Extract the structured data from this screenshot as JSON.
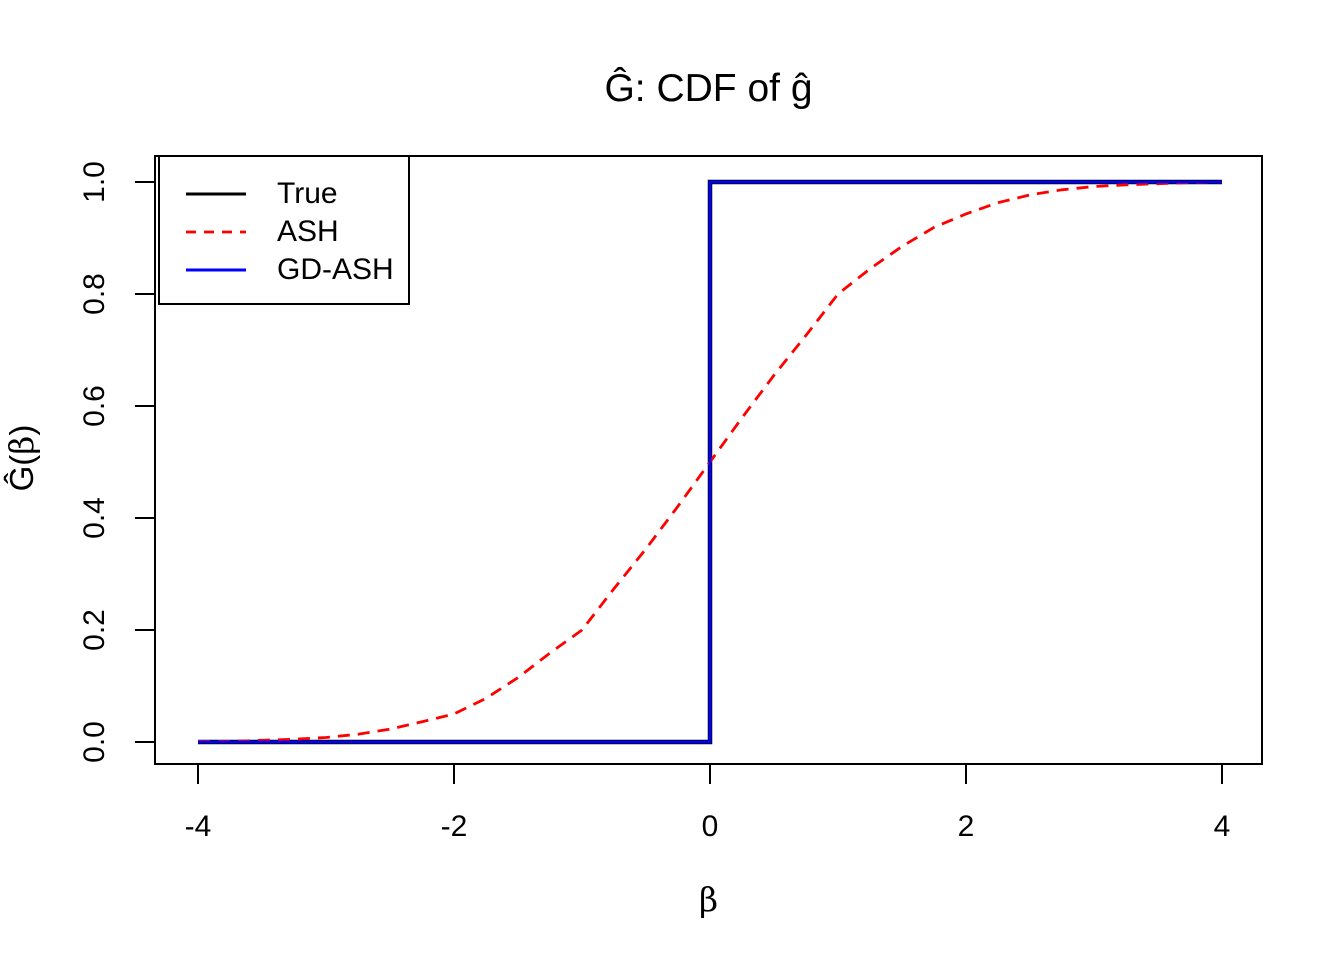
{
  "figure": {
    "background": "#ffffff"
  },
  "chart_data": {
    "type": "line",
    "title": "Ĝ: CDF of ĝ",
    "xlabel": "β",
    "ylabel": "Ĝ(β)",
    "xlim": [
      -4,
      4
    ],
    "ylim": [
      0,
      1
    ],
    "grid": false,
    "x_ticks": {
      "values": [
        -4,
        -2,
        0,
        2,
        4
      ],
      "labels": [
        "-4",
        "-2",
        "0",
        "2",
        "4"
      ]
    },
    "y_ticks": {
      "values": [
        0,
        0.2,
        0.4,
        0.6,
        0.8,
        1
      ],
      "labels": [
        "0.0",
        "0.2",
        "0.4",
        "0.6",
        "0.8",
        "1.0"
      ]
    },
    "legend": {
      "position": "top-left",
      "entries": [
        "True",
        "ASH",
        "GD-ASH"
      ]
    },
    "series": [
      {
        "name": "True",
        "color": "#000000",
        "style": "solid",
        "points": [
          [
            -4,
            0
          ],
          [
            0,
            0
          ],
          [
            0,
            1
          ],
          [
            4,
            1
          ]
        ]
      },
      {
        "name": "ASH",
        "color": "#ff0000",
        "style": "dashed",
        "points": [
          [
            -4,
            0.001
          ],
          [
            -3.75,
            0.001
          ],
          [
            -3.5,
            0.003
          ],
          [
            -3.25,
            0.005
          ],
          [
            -3,
            0.008
          ],
          [
            -2.75,
            0.014
          ],
          [
            -2.5,
            0.023
          ],
          [
            -2.25,
            0.036
          ],
          [
            -2,
            0.05
          ],
          [
            -1.75,
            0.078
          ],
          [
            -1.5,
            0.115
          ],
          [
            -1.25,
            0.159
          ],
          [
            -1,
            0.2
          ],
          [
            -0.75,
            0.274
          ],
          [
            -0.5,
            0.345
          ],
          [
            -0.25,
            0.421
          ],
          [
            0,
            0.5
          ],
          [
            0.25,
            0.579
          ],
          [
            0.5,
            0.655
          ],
          [
            0.75,
            0.726
          ],
          [
            1,
            0.8
          ],
          [
            1.25,
            0.845
          ],
          [
            1.5,
            0.885
          ],
          [
            1.75,
            0.919
          ],
          [
            2,
            0.943
          ],
          [
            2.25,
            0.963
          ],
          [
            2.5,
            0.977
          ],
          [
            2.75,
            0.986
          ],
          [
            3,
            0.992
          ],
          [
            3.25,
            0.995
          ],
          [
            3.5,
            0.997
          ],
          [
            3.75,
            0.999
          ],
          [
            4,
            1.0
          ]
        ]
      },
      {
        "name": "GD-ASH",
        "color": "#0000ff",
        "style": "solid",
        "points": [
          [
            -4,
            0
          ],
          [
            0,
            0
          ],
          [
            0,
            1
          ],
          [
            4,
            1
          ]
        ]
      }
    ]
  }
}
